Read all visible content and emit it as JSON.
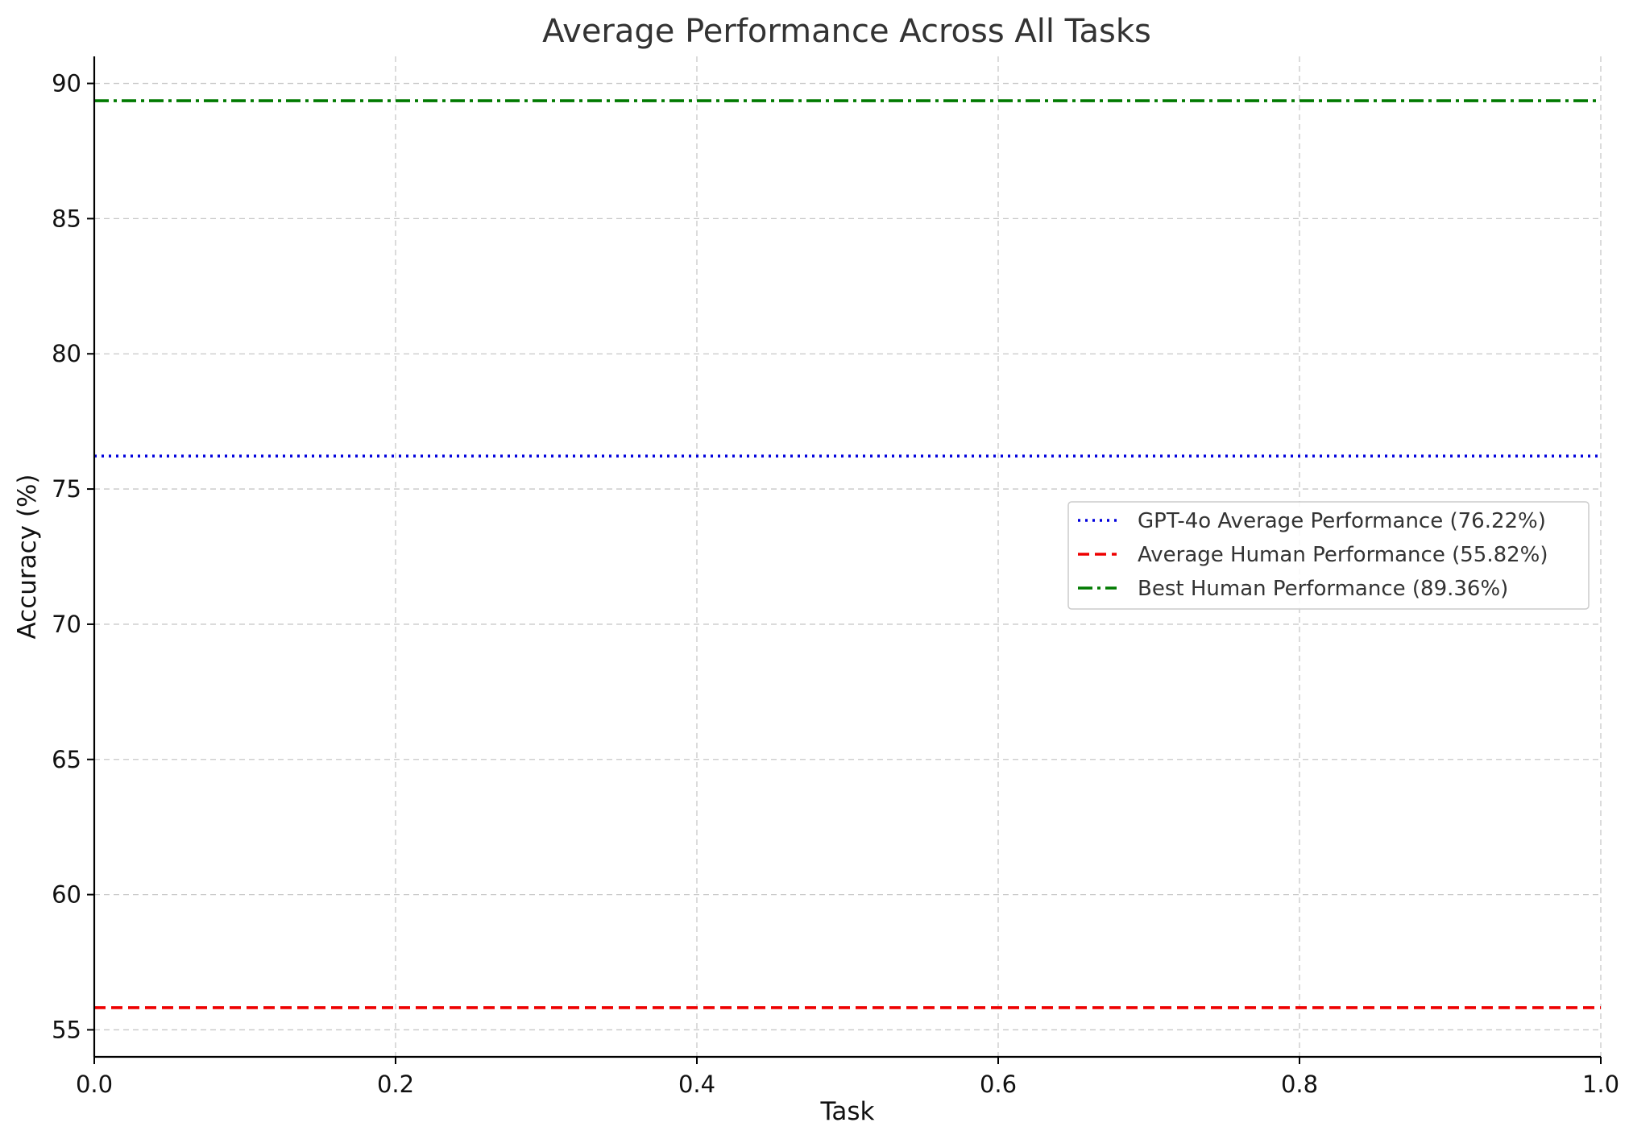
{
  "chart_data": {
    "type": "line",
    "title": "Average Performance Across All Tasks",
    "xlabel": "Task",
    "ylabel": "Accuracy (%)",
    "xlim": [
      0.0,
      1.0
    ],
    "ylim": [
      54.0,
      91.0
    ],
    "xticks": [
      0.0,
      0.2,
      0.4,
      0.6,
      0.8,
      1.0
    ],
    "xtick_labels": [
      "0.0",
      "0.2",
      "0.4",
      "0.6",
      "0.8",
      "1.0"
    ],
    "yticks": [
      55,
      60,
      65,
      70,
      75,
      80,
      85,
      90
    ],
    "ytick_labels": [
      "55",
      "60",
      "65",
      "70",
      "75",
      "80",
      "85",
      "90"
    ],
    "grid": true,
    "legend_position": "center-right",
    "series": [
      {
        "name": "GPT-4o Average Performance (76.22%)",
        "value": 76.22,
        "style": "dotted",
        "color": "#0000dd"
      },
      {
        "name": "Average Human Performance (55.82%)",
        "value": 55.82,
        "style": "dashed",
        "color": "#ee0000"
      },
      {
        "name": "Best Human Performance (89.36%)",
        "value": 89.36,
        "style": "dashdot",
        "color": "#007a00"
      }
    ]
  }
}
